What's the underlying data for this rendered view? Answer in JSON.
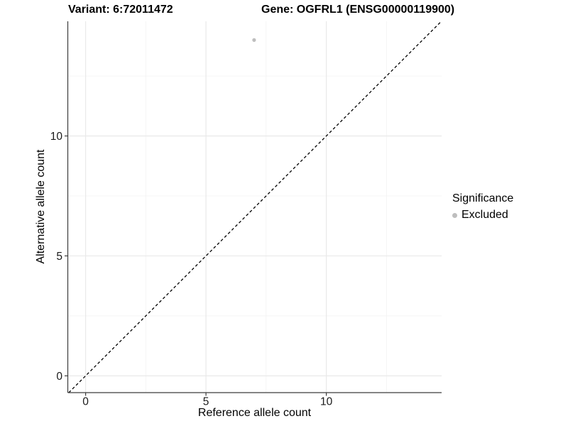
{
  "header": {
    "variant_title": "Variant: 6:72011472",
    "gene_title": "Gene: OGFRL1 (ENSG00000119900)"
  },
  "legend": {
    "title": "Significance",
    "entries": [
      {
        "label": "Excluded",
        "color": "#bebebe"
      }
    ]
  },
  "chart_data": {
    "type": "scatter",
    "title": "Variant: 6:72011472  |  Gene: OGFRL1 (ENSG00000119900)",
    "xlabel": "Reference allele count",
    "ylabel": "Alternative allele count",
    "xlim": [
      -0.74,
      14.79
    ],
    "ylim": [
      -0.7,
      14.78
    ],
    "x_ticks": [
      0,
      5,
      10
    ],
    "y_ticks": [
      0,
      5,
      10
    ],
    "x_minor_gridlines": [
      2.5,
      7.5,
      12.5
    ],
    "y_minor_gridlines": [
      2.5,
      7.5,
      12.5
    ],
    "grid": true,
    "legend_position": "right",
    "legend_title": "Significance",
    "series": [
      {
        "name": "Excluded",
        "color": "#bebebe",
        "points": [
          {
            "x": 7,
            "y": 14
          }
        ]
      }
    ],
    "reference_line": {
      "type": "identity y=x",
      "style": "dashed",
      "color": "#000000"
    },
    "style": {
      "grid_major_color": "#e9e9e9",
      "grid_minor_color": "#f4f4f4",
      "axis_color": "#3c3c3c",
      "tick_label_color": "#1a1a1a"
    }
  }
}
